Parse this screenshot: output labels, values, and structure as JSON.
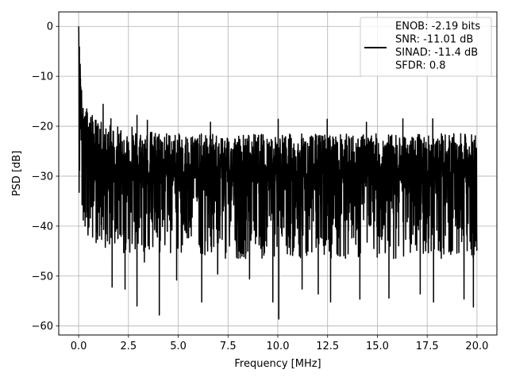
{
  "chart_data": {
    "type": "line",
    "title": "",
    "xlabel": "Frequency [MHz]",
    "ylabel": "PSD [dB]",
    "xlim": [
      -1.0,
      21.0
    ],
    "ylim": [
      -61.8,
      2.9
    ],
    "x_ticks": [
      0.0,
      2.5,
      5.0,
      7.5,
      10.0,
      12.5,
      15.0,
      17.5,
      20.0
    ],
    "x_tick_labels": [
      "0.0",
      "2.5",
      "5.0",
      "7.5",
      "10.0",
      "12.5",
      "15.0",
      "17.5",
      "20.0"
    ],
    "y_ticks": [
      0,
      -10,
      -20,
      -30,
      -40,
      -50,
      -60
    ],
    "y_tick_labels": [
      "0",
      "−10",
      "−20",
      "−30",
      "−40",
      "−50",
      "−60"
    ],
    "grid": true,
    "legend_position": "top-right",
    "legend_lines": [
      "ENOB: -2.19 bits",
      "SNR: -11.01 dB",
      "SINAD: -11.4 dB",
      "SFDR: 0.8"
    ],
    "series": [
      {
        "color": "#000000",
        "x": [
          0.0,
          0.05,
          0.1,
          0.2,
          0.3,
          0.5,
          0.75,
          1.0,
          1.5,
          2.0,
          2.5,
          3.0,
          4.0,
          5.0,
          6.0,
          7.0,
          8.0,
          9.0,
          10.0,
          11.0,
          12.0,
          13.0,
          14.0,
          15.0,
          16.0,
          17.0,
          18.0,
          19.0,
          20.0
        ],
        "y": [
          0.0,
          -8.0,
          -14.0,
          -18.0,
          -22.0,
          -24.0,
          -25.0,
          -26.0,
          -27.0,
          -28.0,
          -28.0,
          -28.5,
          -29.0,
          -29.0,
          -29.5,
          -29.5,
          -29.5,
          -29.5,
          -29.5,
          -29.5,
          -29.5,
          -29.5,
          -29.5,
          -29.5,
          -29.5,
          -29.5,
          -29.5,
          -29.5,
          -29.5
        ],
        "upper": [
          0.0,
          -5.0,
          -8.0,
          -12.0,
          -15.0,
          -17.0,
          -18.0,
          -19.0,
          -19.5,
          -20.0,
          -20.5,
          -21.0,
          -21.0,
          -21.5,
          -21.5,
          -21.5,
          -21.5,
          -21.5,
          -21.5,
          -21.5,
          -21.5,
          -21.5,
          -21.5,
          -21.5,
          -21.5,
          -21.5,
          -21.5,
          -21.5,
          -21.5
        ],
        "lower": [
          -32.0,
          -35.0,
          -38.0,
          -40.0,
          -41.0,
          -42.0,
          -43.0,
          -44.0,
          -45.0,
          -45.0,
          -46.0,
          -46.0,
          -46.0,
          -46.0,
          -46.5,
          -46.5,
          -46.5,
          -46.5,
          -46.5,
          -46.5,
          -46.5,
          -46.5,
          -46.5,
          -46.5,
          -46.5,
          -46.5,
          -46.5,
          -46.5,
          -46.5
        ],
        "notches": [
          {
            "x": 1.68,
            "y": -52.2
          },
          {
            "x": 2.33,
            "y": -52.6
          },
          {
            "x": 2.93,
            "y": -56.0
          },
          {
            "x": 3.3,
            "y": -47.2
          },
          {
            "x": 4.05,
            "y": -57.8
          },
          {
            "x": 4.92,
            "y": -50.8
          },
          {
            "x": 6.18,
            "y": -55.2
          },
          {
            "x": 6.98,
            "y": -49.6
          },
          {
            "x": 8.58,
            "y": -50.6
          },
          {
            "x": 9.75,
            "y": -55.2
          },
          {
            "x": 10.05,
            "y": -58.6
          },
          {
            "x": 11.22,
            "y": -52.6
          },
          {
            "x": 12.03,
            "y": -53.6
          },
          {
            "x": 12.65,
            "y": -55.2
          },
          {
            "x": 14.12,
            "y": -54.6
          },
          {
            "x": 15.58,
            "y": -54.4
          },
          {
            "x": 17.15,
            "y": -53.6
          },
          {
            "x": 17.82,
            "y": -55.2
          },
          {
            "x": 19.35,
            "y": -54.6
          },
          {
            "x": 19.82,
            "y": -56.2
          }
        ],
        "peaks": [
          {
            "x": 1.23,
            "y": -15.6
          },
          {
            "x": 1.62,
            "y": -18.5
          },
          {
            "x": 2.68,
            "y": -20.2
          },
          {
            "x": 2.93,
            "y": -17.8
          },
          {
            "x": 3.45,
            "y": -18.8
          },
          {
            "x": 6.62,
            "y": -19.2
          },
          {
            "x": 10.02,
            "y": -18.6
          },
          {
            "x": 12.48,
            "y": -18.6
          },
          {
            "x": 14.45,
            "y": -19.2
          },
          {
            "x": 16.28,
            "y": -18.5
          },
          {
            "x": 17.78,
            "y": -18.5
          }
        ]
      }
    ]
  }
}
